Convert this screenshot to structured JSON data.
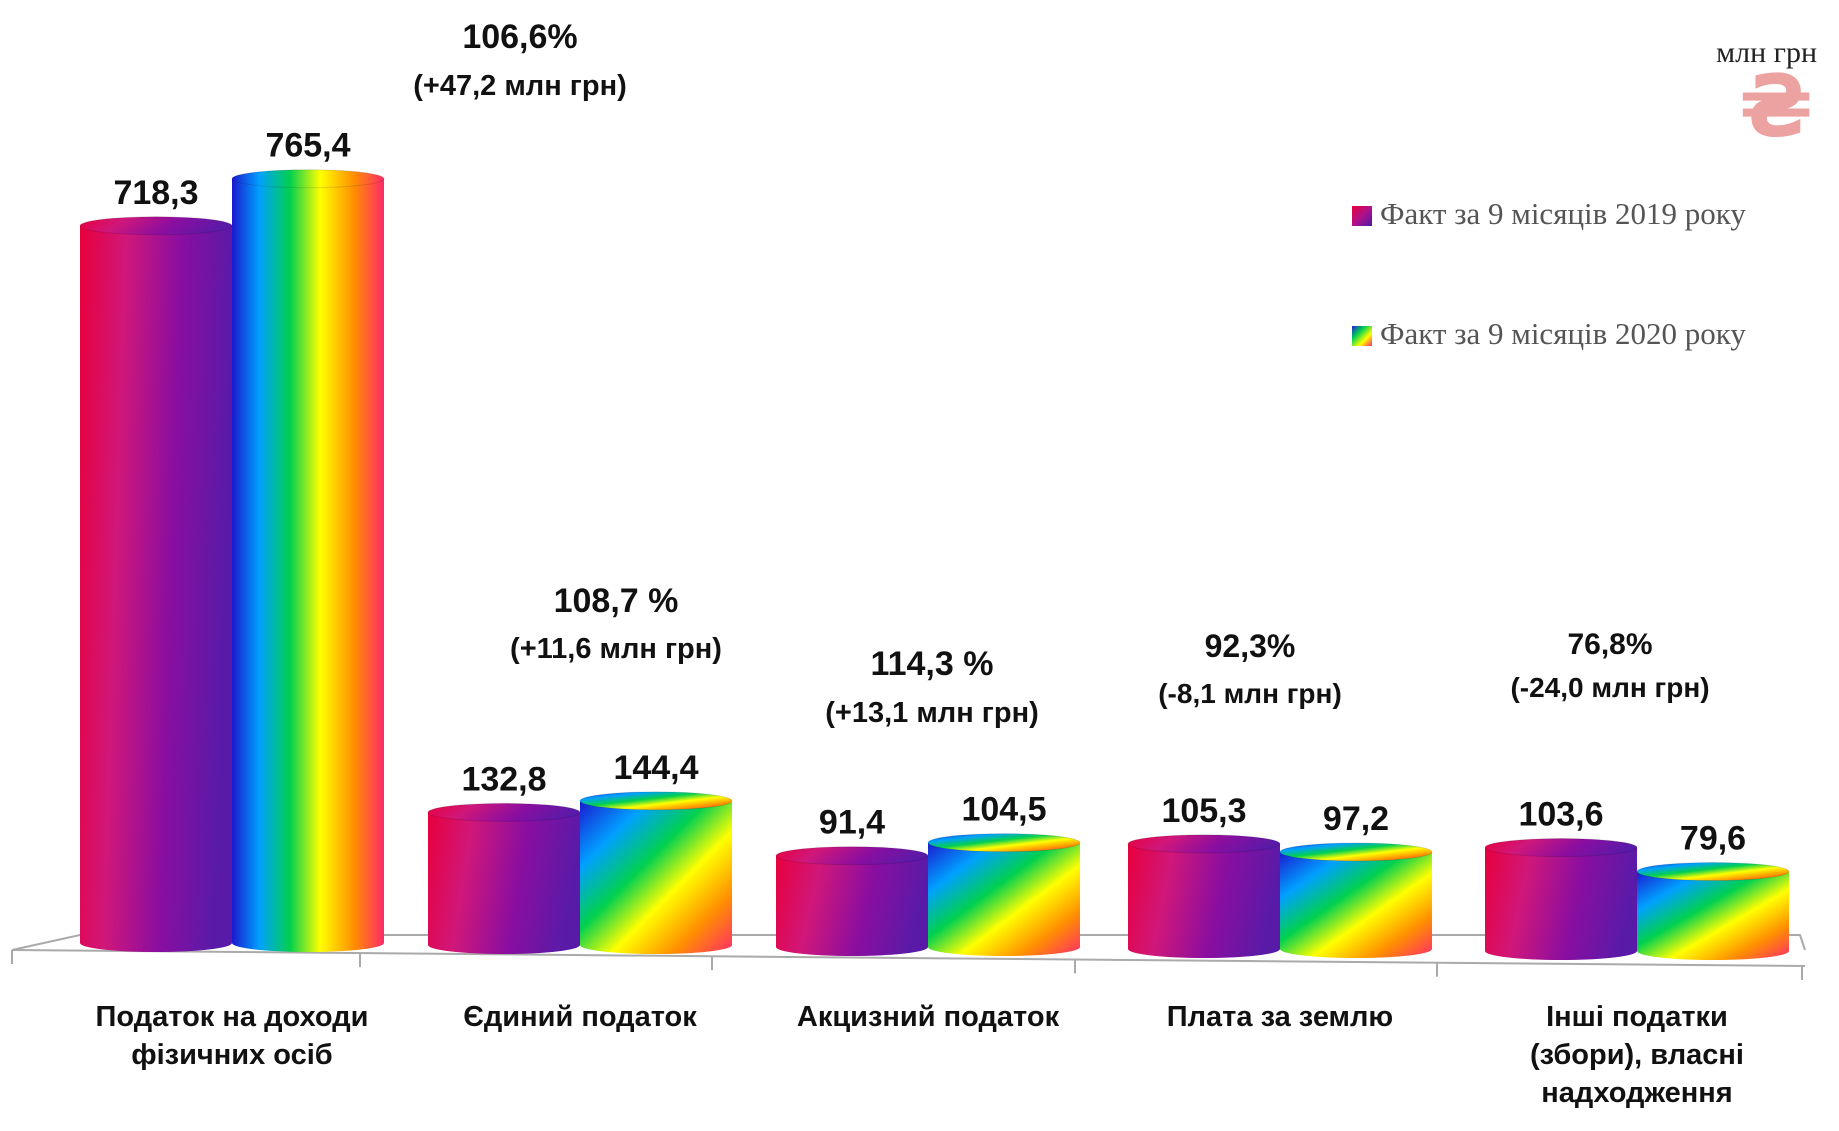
{
  "chart_data": {
    "type": "bar",
    "unit_label": "млн грн",
    "currency_symbol": "₴",
    "categories": [
      [
        "Податок на доходи",
        "фізичних осіб"
      ],
      [
        "Єдиний податок"
      ],
      [
        "Акцизний податок"
      ],
      [
        "Плата за землю"
      ],
      [
        "Інші податки",
        "(збори), власні",
        "надходження"
      ]
    ],
    "series": [
      {
        "name": "Факт  за 9 місяців 2019 року",
        "values": [
          718.3,
          132.8,
          91.4,
          105.3,
          103.6
        ],
        "labels": [
          "718,3",
          "132,8",
          "91,4",
          "105,3",
          "103,6"
        ]
      },
      {
        "name": "Факт за 9 місяців 2020 року",
        "values": [
          765.4,
          144.4,
          104.5,
          97.2,
          79.6
        ],
        "labels": [
          "765,4",
          "144,4",
          "104,5",
          "97,2",
          "79,6"
        ]
      }
    ],
    "annotations": [
      {
        "percent": "106,6%",
        "change": "(+47,2 млн грн)"
      },
      {
        "percent": "108,7 %",
        "change": "(+11,6 млн грн)"
      },
      {
        "percent": "114,3 %",
        "change": "(+13,1 млн грн)"
      },
      {
        "percent": "92,3%",
        "change": "(-8,1 млн грн)"
      },
      {
        "percent": "76,8%",
        "change": "(-24,0 млн грн)"
      }
    ],
    "legend_position": "right",
    "grid": false,
    "colors": {
      "series1": [
        "#e8003c",
        "#d0177a",
        "#8a0ea0",
        "#5a1aa8"
      ],
      "series2": [
        "#2020d8",
        "#00a0ff",
        "#00d050",
        "#ffff00",
        "#ff9000",
        "#ff2a6a"
      ],
      "axis": "#aaaaaa",
      "text": "#111111"
    }
  }
}
